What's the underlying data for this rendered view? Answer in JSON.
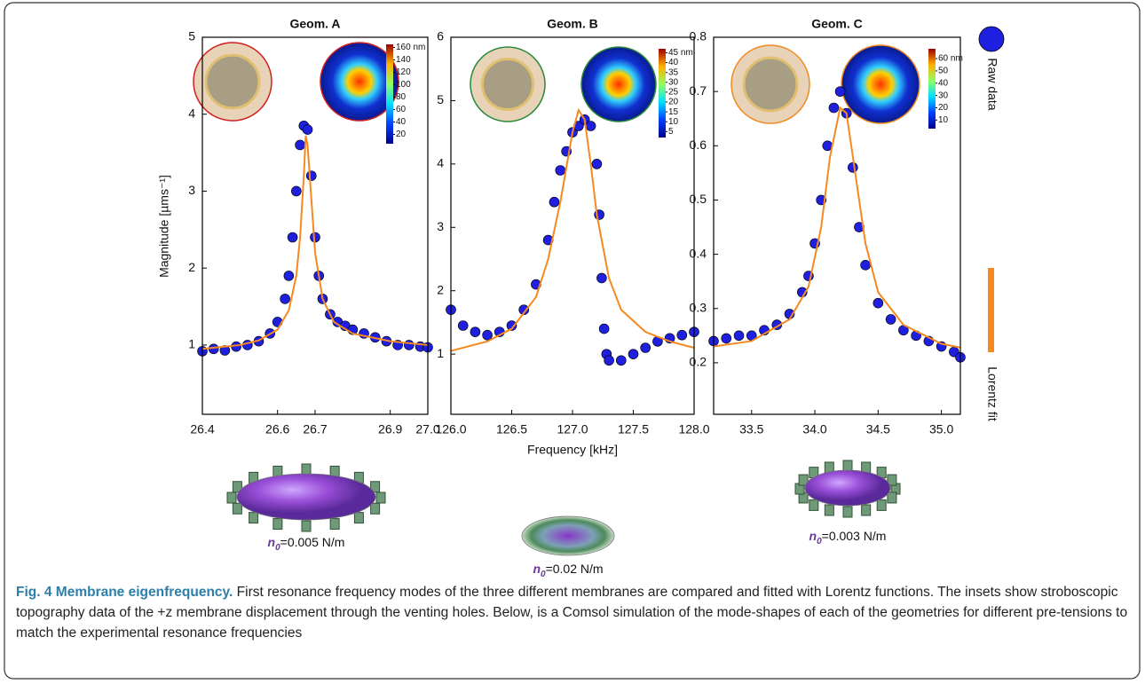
{
  "legend": [
    {
      "name": "Raw data",
      "color": "#1f1fe0"
    },
    {
      "name": "Lorentz fit",
      "color": "#f5891f"
    }
  ],
  "y_label": "Magnitude [µms⁻¹]",
  "x_label": "Frequency [kHz]",
  "chart_data": [
    {
      "type": "scatter",
      "title": "Geom. A",
      "xlim": [
        26.4,
        27.0
      ],
      "ylim": [
        0.1,
        5
      ],
      "xticks": [
        26.4,
        26.6,
        26.7,
        26.9,
        {
          "value": 27.0,
          "label": "27.0"
        }
      ],
      "yticks": [
        1,
        2,
        3,
        4,
        5
      ],
      "series": [
        {
          "type": "scatter",
          "color": "#1f1fe0",
          "x": [
            26.4,
            26.43,
            26.46,
            26.49,
            26.52,
            26.55,
            26.58,
            26.6,
            26.62,
            26.63,
            26.64,
            26.65,
            26.66,
            26.67,
            26.68,
            26.69,
            26.7,
            26.71,
            26.72,
            26.74,
            26.76,
            26.78,
            26.8,
            26.83,
            26.86,
            26.89,
            26.92,
            26.95,
            26.98,
            27.0
          ],
          "values": [
            0.92,
            0.95,
            0.93,
            0.98,
            1.0,
            1.05,
            1.15,
            1.3,
            1.6,
            1.9,
            2.4,
            3.0,
            3.6,
            3.85,
            3.8,
            3.2,
            2.4,
            1.9,
            1.6,
            1.4,
            1.3,
            1.25,
            1.2,
            1.15,
            1.1,
            1.05,
            1.0,
            1.0,
            0.98,
            0.97
          ]
        },
        {
          "type": "line",
          "color": "#f5891f",
          "x": [
            26.4,
            26.5,
            26.55,
            26.6,
            26.63,
            26.65,
            26.66,
            26.67,
            26.675,
            26.68,
            26.69,
            26.7,
            26.72,
            26.75,
            26.8,
            26.9,
            27.0
          ],
          "values": [
            0.95,
            1.0,
            1.06,
            1.2,
            1.45,
            1.9,
            2.4,
            3.2,
            3.72,
            3.6,
            2.9,
            2.2,
            1.6,
            1.3,
            1.15,
            1.05,
            1.0
          ]
        }
      ],
      "colorbar": {
        "lim": [
          5,
          165
        ],
        "ticks": [
          {
            "value": 160,
            "label": "160 nm"
          },
          140,
          120,
          100,
          80,
          60,
          40,
          20
        ]
      },
      "simulation": {
        "symbol": "n",
        "subscript": "0",
        "text": "=0.005 N/m"
      }
    },
    {
      "type": "scatter",
      "title": "Geom. B",
      "xlim": [
        126.0,
        128.0
      ],
      "ylim": [
        0.05,
        6
      ],
      "xticks": [
        {
          "value": 126.0,
          "label": "126.0"
        },
        126.5,
        {
          "value": 127.0,
          "label": "127.0"
        },
        127.5,
        {
          "value": 128.0,
          "label": "128.0"
        }
      ],
      "yticks": [
        1,
        2,
        3,
        4,
        5,
        6
      ],
      "series": [
        {
          "type": "scatter",
          "color": "#1f1fe0",
          "x": [
            126.0,
            126.1,
            126.2,
            126.3,
            126.4,
            126.5,
            126.6,
            126.7,
            126.8,
            126.85,
            126.9,
            126.95,
            127.0,
            127.05,
            127.1,
            127.15,
            127.2,
            127.22,
            127.24,
            127.26,
            127.28,
            127.3,
            127.4,
            127.5,
            127.6,
            127.7,
            127.8,
            127.9,
            128.0
          ],
          "values": [
            1.7,
            1.45,
            1.35,
            1.3,
            1.35,
            1.45,
            1.7,
            2.1,
            2.8,
            3.4,
            3.9,
            4.2,
            4.5,
            4.6,
            4.7,
            4.6,
            4.0,
            3.2,
            2.2,
            1.4,
            1.0,
            0.9,
            0.9,
            1.0,
            1.1,
            1.2,
            1.25,
            1.3,
            1.35
          ]
        },
        {
          "type": "line",
          "color": "#f5891f",
          "x": [
            126.0,
            126.3,
            126.5,
            126.7,
            126.8,
            126.9,
            127.0,
            127.05,
            127.1,
            127.15,
            127.2,
            127.3,
            127.4,
            127.6,
            127.8,
            128.0
          ],
          "values": [
            1.05,
            1.2,
            1.4,
            1.9,
            2.5,
            3.4,
            4.5,
            4.85,
            4.7,
            4.0,
            3.2,
            2.2,
            1.7,
            1.35,
            1.2,
            1.1
          ]
        }
      ],
      "colorbar": {
        "lim": [
          2,
          47
        ],
        "ticks": [
          {
            "value": 45,
            "label": "45 nm"
          },
          40,
          35,
          30,
          25,
          20,
          15,
          10,
          5
        ]
      },
      "simulation": {
        "symbol": "n",
        "subscript": "0",
        "text": "=0.02 N/m"
      }
    },
    {
      "type": "scatter",
      "title": "Geom. C",
      "xlim": [
        33.2,
        35.15
      ],
      "ylim": [
        0.105,
        0.8
      ],
      "xticks": [
        33.5,
        {
          "value": 34.0,
          "label": "34.0"
        },
        34.5,
        {
          "value": 35.0,
          "label": "35.0"
        }
      ],
      "yticks": [
        0.2,
        0.3,
        0.4,
        0.5,
        0.6,
        0.7,
        0.8
      ],
      "series": [
        {
          "type": "scatter",
          "color": "#1f1fe0",
          "x": [
            33.2,
            33.3,
            33.4,
            33.5,
            33.6,
            33.7,
            33.8,
            33.9,
            33.95,
            34.0,
            34.05,
            34.1,
            34.15,
            34.2,
            34.25,
            34.3,
            34.35,
            34.4,
            34.5,
            34.6,
            34.7,
            34.8,
            34.9,
            35.0,
            35.1,
            35.15
          ],
          "values": [
            0.24,
            0.245,
            0.25,
            0.25,
            0.26,
            0.27,
            0.29,
            0.33,
            0.36,
            0.42,
            0.5,
            0.6,
            0.67,
            0.7,
            0.66,
            0.56,
            0.45,
            0.38,
            0.31,
            0.28,
            0.26,
            0.25,
            0.24,
            0.23,
            0.22,
            0.21
          ]
        },
        {
          "type": "line",
          "color": "#f5891f",
          "x": [
            33.2,
            33.5,
            33.8,
            33.95,
            34.05,
            34.12,
            34.2,
            34.25,
            34.3,
            34.4,
            34.5,
            34.7,
            35.0,
            35.15
          ],
          "values": [
            0.23,
            0.24,
            0.28,
            0.34,
            0.45,
            0.58,
            0.67,
            0.66,
            0.58,
            0.42,
            0.33,
            0.27,
            0.235,
            0.228
          ]
        }
      ],
      "colorbar": {
        "lim": [
          3,
          68
        ],
        "ticks": [
          {
            "value": 60,
            "label": "60 nm"
          },
          50,
          40,
          30,
          20,
          10
        ]
      },
      "simulation": {
        "symbol": "n",
        "subscript": "0",
        "text": "=0.003 N/m"
      }
    }
  ],
  "caption": {
    "label": "Fig. 4 Membrane eigenfrequency.",
    "text": "First resonance frequency modes of the three different membranes are compared and fitted with Lorentz functions. The insets show stroboscopic topography data of the +z membrane displacement through the venting holes. Below, is a Comsol simulation of the mode-shapes of each of the geometries for different pre-tensions to match the experimental resonance frequencies"
  }
}
